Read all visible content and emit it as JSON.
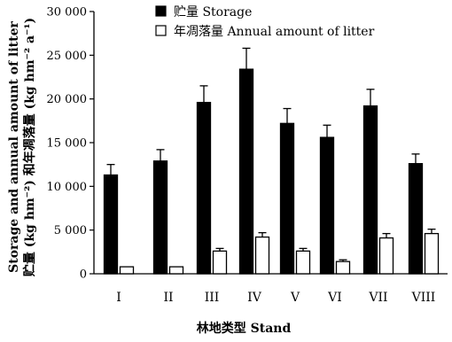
{
  "chart_data": {
    "type": "bar",
    "categories": [
      "I",
      "II",
      "III",
      "IV",
      "V",
      "VI",
      "VII",
      "VIII"
    ],
    "series": [
      {
        "name": "贮量 Storage",
        "color": "#000000",
        "values": [
          11300,
          12900,
          19600,
          23400,
          17200,
          15600,
          19200,
          12600
        ],
        "errors": [
          1200,
          1300,
          1900,
          2400,
          1700,
          1400,
          1900,
          1100
        ]
      },
      {
        "name": "年凋落量 Annual amount of litter",
        "color": "#ffffff",
        "values": [
          800,
          800,
          2600,
          4200,
          2600,
          1400,
          4100,
          4600
        ],
        "errors": [
          0,
          0,
          300,
          500,
          300,
          200,
          500,
          500
        ]
      }
    ],
    "ylim": [
      0,
      30000
    ],
    "yticks": [
      0,
      5000,
      10000,
      15000,
      20000,
      25000,
      30000
    ],
    "ytick_labels": [
      "0",
      "5 000",
      "10 000",
      "15 000",
      "20 000",
      "25 000",
      "30 000"
    ],
    "xlabel": "林地类型 Stand",
    "ylabel_lines": [
      "Storage and annual amount of litter",
      "贮量 (kg hm⁻²) 和年凋落量 (kg hm⁻² a⁻¹)"
    ],
    "legend_position": "top-left",
    "grid": false
  }
}
